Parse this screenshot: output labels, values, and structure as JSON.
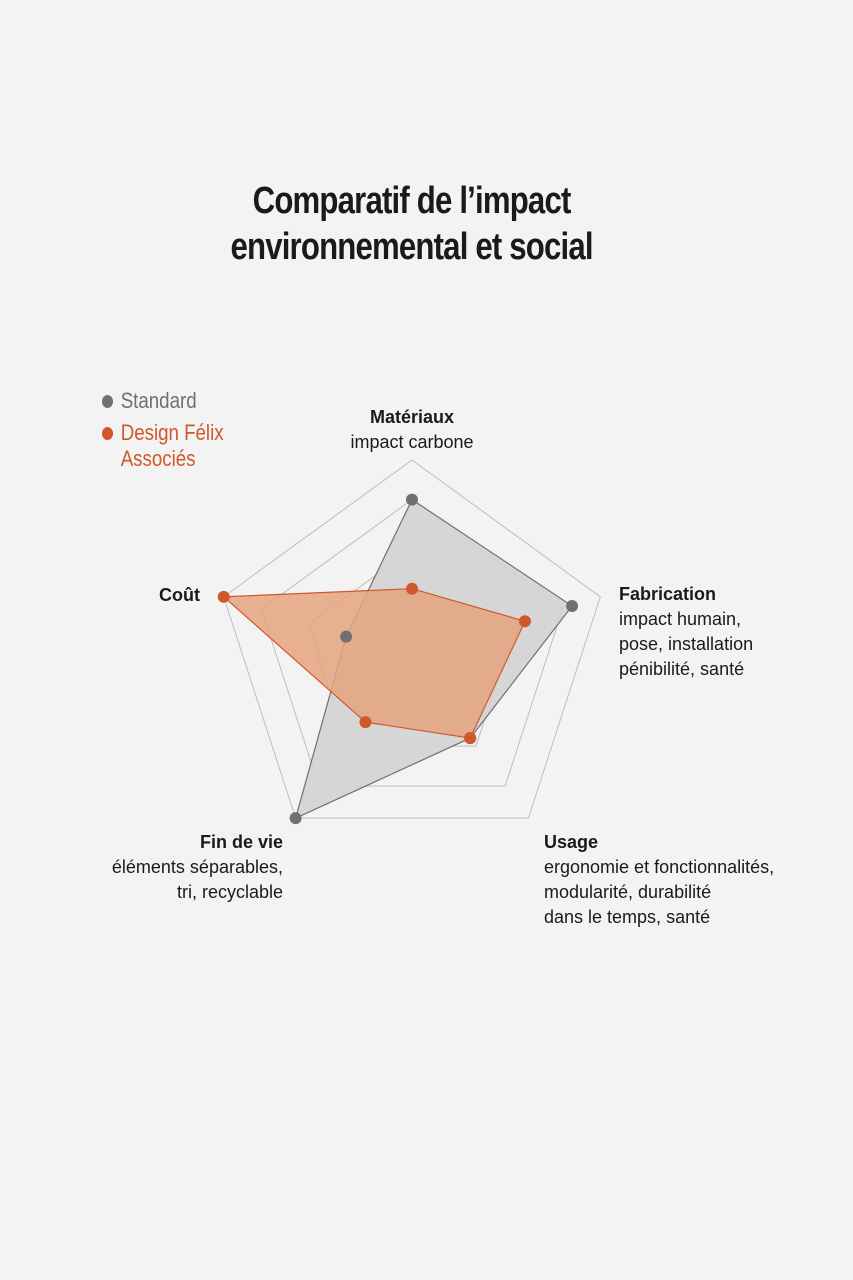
{
  "chart_data": {
    "type": "radar",
    "title_lines": [
      "Comparatif de l’impact",
      "environnemental et social"
    ],
    "axes": [
      {
        "name": "Matériaux",
        "details": [
          "impact carbone"
        ]
      },
      {
        "name": "Fabrication",
        "details": [
          "impact humain,",
          "pose, installation",
          "pénibilité, santé"
        ]
      },
      {
        "name": "Usage",
        "details": [
          "ergonomie et fonctionnalités,",
          "modularité, durabilité",
          "dans le temps, santé"
        ]
      },
      {
        "name": "Fin de vie",
        "details": [
          "éléments séparables,",
          "tri, recyclable"
        ]
      },
      {
        "name": "Coût",
        "details": []
      }
    ],
    "rmax": 1,
    "grid_levels": [
      0.1,
      0.3,
      0.55,
      0.8,
      1.0
    ],
    "series": [
      {
        "name": "Standard",
        "values": [
          0.8,
          0.85,
          0.5,
          1.0,
          0.35
        ],
        "color": "#707070",
        "fill": "#d3d3d3"
      },
      {
        "name": "Design Félix Associés",
        "values": [
          0.35,
          0.6,
          0.5,
          0.4,
          1.0
        ],
        "color": "#d0582c",
        "fill": "#e4a47f"
      }
    ],
    "legend_position": "top-left",
    "grid_color": "#bdbdbd"
  },
  "legend": [
    {
      "lines": [
        "Standard"
      ],
      "color": "#707070"
    },
    {
      "lines": [
        "Design Félix",
        "Associés"
      ],
      "color": "#d0582c"
    }
  ]
}
